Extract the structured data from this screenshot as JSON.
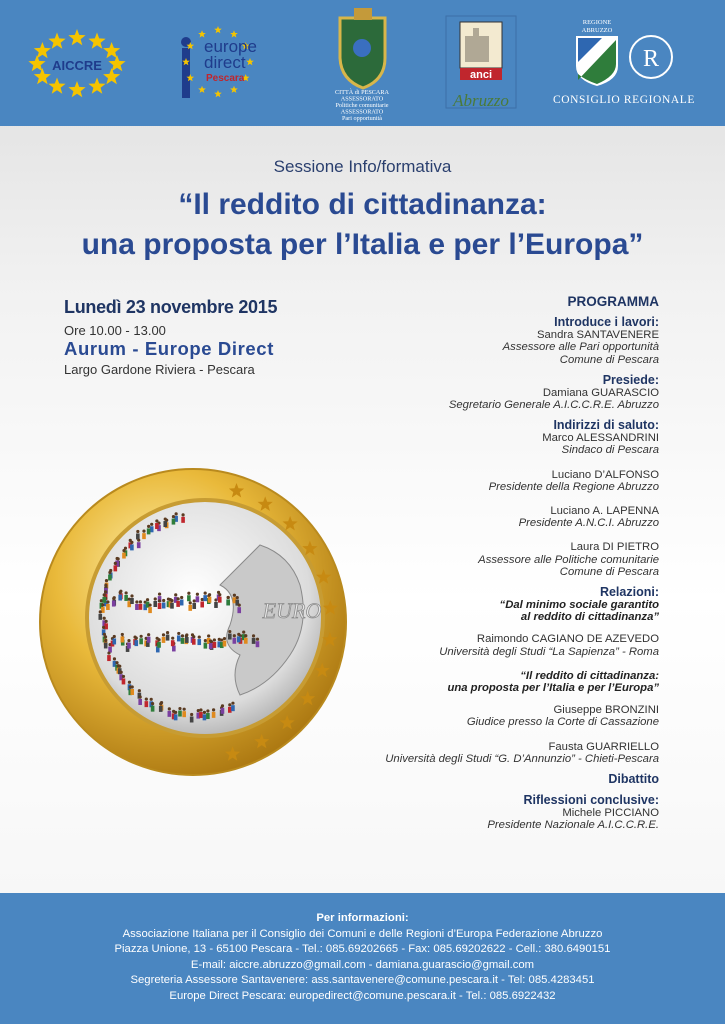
{
  "header": {
    "aiccre": "AICCRE",
    "europe_direct": {
      "line1": "europe",
      "line2": "direct",
      "city": "Pescara"
    },
    "comune": {
      "lines": [
        "CITTÀ di PESCARA",
        "ASSESSORATO",
        "Politiche comunitarie",
        "ASSESSORATO",
        "Pari opportunità"
      ]
    },
    "anci": {
      "name": "anci",
      "region": "Abruzzo"
    },
    "regione": {
      "top": "REGIONE",
      "top2": "ABRUZZO",
      "council": "CONSIGLIO REGIONALE"
    }
  },
  "session": "Sessione Info/formativa",
  "title": [
    "“Il reddito di cittadinanza:",
    "una proposta per l’Italia e per l’Europa”"
  ],
  "event": {
    "date": "Lunedì 23 novembre 2015",
    "time": "Ore 10.00 - 13.00",
    "venue": "Aurum - Europe Direct",
    "address": "Largo Gardone Riviera - Pescara"
  },
  "coin": {
    "text": "EURO"
  },
  "program": {
    "heading": "PROGRAMMA",
    "sections": [
      {
        "label": "Introduce i lavori:",
        "speakers": [
          {
            "name": "Sandra SANTAVENERE",
            "roles": [
              "Assessore alle Pari opportunità",
              "Comune di Pescara"
            ]
          }
        ]
      },
      {
        "label": "Presiede:",
        "speakers": [
          {
            "name": "Damiana GUARASCIO",
            "roles": [
              "Segretario Generale A.I.C.C.R.E. Abruzzo"
            ]
          }
        ]
      },
      {
        "label": "Indirizzi di saluto:",
        "speakers": [
          {
            "name": "Marco ALESSANDRINI",
            "roles": [
              "Sindaco di Pescara"
            ]
          },
          {
            "name": "Luciano D’ALFONSO",
            "roles": [
              "Presidente della Regione Abruzzo"
            ]
          },
          {
            "name": "Luciano A. LAPENNA",
            "roles": [
              "Presidente A.N.C.I. Abruzzo"
            ]
          },
          {
            "name": "Laura DI PIETRO",
            "roles": [
              "Assessore alle Politiche comunitarie",
              "Comune di Pescara"
            ]
          }
        ]
      },
      {
        "label": "Relazioni:",
        "talks": [
          {
            "title": [
              "“Dal minimo sociale garantito",
              "al reddito di cittadinanza”"
            ],
            "speakers": [
              {
                "name": "Raimondo CAGIANO DE AZEVEDO",
                "roles": [
                  "Università degli Studi “La Sapienza” - Roma"
                ]
              }
            ]
          },
          {
            "title": [
              "“Il reddito di cittadinanza:",
              "una proposta per l’Italia e per l’Europa”"
            ],
            "speakers": [
              {
                "name": "Giuseppe BRONZINI",
                "roles": [
                  "Giudice presso la Corte di Cassazione"
                ]
              },
              {
                "name": "Fausta GUARRIELLO",
                "roles": [
                  "Università degli Studi “G. D’Annunzio” - Chieti-Pescara"
                ]
              }
            ]
          }
        ]
      },
      {
        "label": "Dibattito"
      },
      {
        "label": "Riflessioni conclusive:",
        "speakers": [
          {
            "name": "Michele PICCIANO",
            "roles": [
              "Presidente Nazionale A.I.C.C.R.E."
            ]
          }
        ]
      }
    ]
  },
  "footer": {
    "heading": "Per informazioni:",
    "lines": [
      "Associazione Italiana per il Consiglio dei Comuni e delle Regioni d’Europa Federazione Abruzzo",
      "Piazza Unione, 13 - 65100 Pescara - Tel.: 085.69202665 - Fax: 085.69202622 - Cell.: 380.6490151",
      "E-mail: aiccre.abruzzo@gmail.com - damiana.guarascio@gmail.com",
      "Segreteria Assessore Santavenere: ass.santavenere@comune.pescara.it - Tel: 085.4283451",
      "Europe Direct Pescara: europedirect@comune.pescara.it - Tel.: 085.6922432"
    ]
  }
}
